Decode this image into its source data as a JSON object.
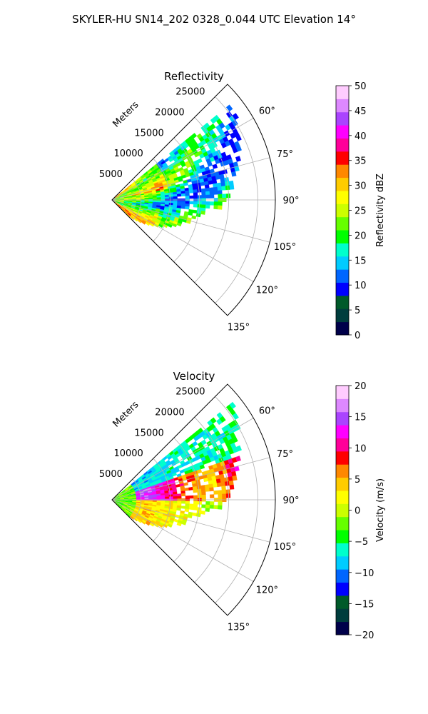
{
  "figure": {
    "suptitle": "SKYLER-HU  SN14_202  0328_0.044 UTC Elevation 14°"
  },
  "chart_data": [
    {
      "type": "heatmap",
      "title": "Reflectivity",
      "radial_label": "Meters",
      "radial_ticks": [
        "5000",
        "10000",
        "15000",
        "20000",
        "25000"
      ],
      "radial_tick_values": [
        5000,
        10000,
        15000,
        20000,
        25000
      ],
      "rmax": 28000,
      "azimuth_range_deg": [
        45,
        135
      ],
      "angle_ticks": [
        "60°",
        "75°",
        "90°",
        "105°",
        "120°",
        "135°"
      ],
      "angle_tick_values": [
        60,
        75,
        90,
        105,
        120,
        135
      ],
      "colorbar": {
        "label": "Reflectivity dBZ",
        "range": [
          0,
          50
        ],
        "ticks": [
          "0",
          "5",
          "10",
          "15",
          "20",
          "25",
          "30",
          "35",
          "40",
          "45",
          "50"
        ],
        "tick_values": [
          0,
          5,
          10,
          15,
          20,
          25,
          30,
          35,
          40,
          45,
          50
        ]
      },
      "grid": true
    },
    {
      "type": "heatmap",
      "title": "Velocity",
      "radial_label": "Meters",
      "radial_ticks": [
        "5000",
        "10000",
        "15000",
        "20000",
        "25000"
      ],
      "radial_tick_values": [
        5000,
        10000,
        15000,
        20000,
        25000
      ],
      "rmax": 28000,
      "azimuth_range_deg": [
        45,
        135
      ],
      "angle_ticks": [
        "60°",
        "75°",
        "90°",
        "105°",
        "120°",
        "135°"
      ],
      "angle_tick_values": [
        60,
        75,
        90,
        105,
        120,
        135
      ],
      "colorbar": {
        "label": "Velocity (m/s)",
        "range": [
          -20,
          20
        ],
        "ticks": [
          "−20",
          "−15",
          "−10",
          "−5",
          "0",
          "5",
          "10",
          "15",
          "20"
        ],
        "tick_values": [
          -20,
          -15,
          -10,
          -5,
          0,
          5,
          10,
          15,
          20
        ]
      },
      "grid": true
    }
  ],
  "colormap": [
    "#00004a",
    "#003d3d",
    "#005a2a",
    "#0000ff",
    "#0066ff",
    "#00ccff",
    "#00ffcc",
    "#00ff00",
    "#66ff00",
    "#ccff00",
    "#ffff00",
    "#ffcc00",
    "#ff8800",
    "#ff0000",
    "#ff0099",
    "#ff00ff",
    "#aa44ff",
    "#dd88ff",
    "#ffccff"
  ]
}
